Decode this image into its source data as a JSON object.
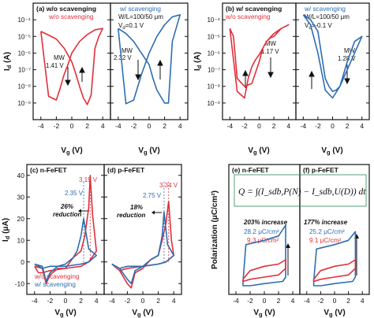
{
  "colors": {
    "red": "#e0303a",
    "blue": "#2e6db4",
    "black": "#111111",
    "green_border": "#2e8b57"
  },
  "panel_labels": {
    "a": "(a) w/o scavenging",
    "b": "(b) w/ scavenging",
    "c": "(c) n-FeFET",
    "d": "(d) p-FeFET",
    "e": "(e) n-FeFET",
    "f": "(f) p-FeFET"
  },
  "annotations": {
    "a_red": "w/o scavenging",
    "a_blue": "w/ scavenging",
    "a_wl": "W/L=100/50 μm",
    "a_vd": "V",
    "a_vd_sub": "d",
    "a_vd_val": "=0.1 V",
    "a_mw_label": "MW",
    "a_mw_red": "1.41 V",
    "a_mw_blue": "2.32 V",
    "b_red": "w/o scavenging",
    "b_blue": "w/ scavenging",
    "b_wl": "W/L=100/50 μm",
    "b_vd": "V",
    "b_vd_sub": "d",
    "b_vd_val": "=-0.1 V",
    "b_mw_label": "MW",
    "b_mw_red": "1.17 V",
    "b_mw_blue": "1.28 V",
    "c_v_red": "3.19 V",
    "c_v_blue": "2.35 V",
    "c_reduction_pct": "26%",
    "c_reduction_word": "reduction",
    "c_legend_red": "w/o scavenging",
    "c_legend_blue": "w/ scavenging",
    "d_v_red": "3.34 V",
    "d_v_blue": "2.75 V",
    "d_reduction_pct": "18%",
    "d_reduction_word": "reduction",
    "e_equation": "Q = ∫(I_sdb,P(N) − I_sdb,U(D)) dt",
    "e_increase": "203% increase",
    "e_blue": "28.2 μC/cm²",
    "e_red": "9.3 μC/cm²",
    "f_increase": "177% increase",
    "f_blue": "25.2 μC/cm²",
    "f_red": "9.1 μC/cm²"
  },
  "axis_text": {
    "id_log_label": "I",
    "id_log_sub": "d",
    "id_log_unit": " (A)",
    "id_lin_label": "I",
    "id_lin_sub": "d",
    "id_lin_unit": " (μA)",
    "vg_label": "V",
    "vg_sub": "g",
    "vg_unit": " (V)",
    "pol_label": "Polarization (μC/cm²)",
    "log_ticks": [
      "10⁻⁹",
      "10⁻⁸",
      "10⁻⁷",
      "10⁻⁶",
      "10⁻⁵",
      "10⁻⁴"
    ],
    "lin_ticks": [
      "-10",
      "0",
      "10",
      "20",
      "30",
      "40"
    ],
    "vg_ticks": [
      "-4",
      "-2",
      "0",
      "2",
      "4"
    ]
  },
  "chart_data": [
    {
      "type": "line",
      "panel": "a",
      "title": "w/o scavenging",
      "xlabel": "Vg (V)",
      "ylabel": "Id (A)",
      "xlim": [
        -5,
        5
      ],
      "ylim": [
        1e-10,
        0.001
      ],
      "yscale": "log",
      "series": [
        {
          "name": "w/o scavenging",
          "color": "red",
          "x": [
            -4,
            -3,
            -2,
            -1,
            0,
            0.5,
            1,
            1.5,
            2,
            2.5,
            3,
            3.5,
            4,
            3,
            2,
            1,
            0,
            -0.5,
            -1,
            -1.5,
            -2,
            -3,
            -4
          ],
          "y": [
            2e-05,
            1.2e-05,
            7e-06,
            2e-06,
            3e-07,
            6e-08,
            1e-08,
            2e-09,
            8e-10,
            3e-09,
            2e-06,
            1e-05,
            3e-05,
            2.5e-05,
            1.3e-05,
            5e-06,
            1e-06,
            2e-07,
            5e-08,
            8e-09,
            1.5e-09,
            2.5e-09,
            2e-05
          ]
        },
        {
          "name": "w/ scavenging",
          "color": "blue",
          "x": [
            -4,
            -3,
            -2,
            -1,
            0,
            0.5,
            1,
            2,
            2.5,
            3,
            4,
            3,
            2,
            1,
            0,
            -1,
            -2,
            -3,
            -4
          ],
          "y": [
            3e-05,
            1.5e-05,
            5e-06,
            1e-06,
            2e-07,
            3e-08,
            6e-09,
            1e-09,
            1e-09,
            5e-06,
            0.0002,
            0.00015,
            5e-05,
            1e-05,
            1e-06,
            5e-08,
            1.5e-09,
            9e-10,
            3e-05
          ]
        }
      ],
      "memory_window": {
        "w/o scavenging": 1.41,
        "w/ scavenging": 2.32
      }
    },
    {
      "type": "line",
      "panel": "b",
      "title": "w/ scavenging",
      "xlabel": "Vg (V)",
      "ylabel": "Id (A)",
      "xlim": [
        -5,
        5
      ],
      "ylim": [
        1e-10,
        0.001
      ],
      "yscale": "log",
      "series": [
        {
          "name": "w/o scavenging",
          "color": "red",
          "x": [
            -4,
            -3.5,
            -3,
            -2,
            -1,
            0,
            0.5,
            1,
            1.5,
            2,
            3,
            4,
            3,
            2,
            1,
            0,
            -0.5,
            -1,
            -1.5,
            -2,
            -3,
            -4
          ],
          "y": [
            3e-05,
            1e-05,
            3e-08,
            1e-08,
            1.5e-08,
            3e-07,
            2e-06,
            5e-06,
            8e-06,
            1e-05,
            3e-05,
            5e-05,
            3e-05,
            1.5e-05,
            5e-06,
            8e-07,
            4e-07,
            1.5e-07,
            3e-08,
            2e-09,
            5e-09,
            3e-05
          ]
        },
        {
          "name": "w/ scavenging",
          "color": "blue",
          "x": [
            -4,
            -3,
            -2,
            -1,
            -0.5,
            0,
            0.5,
            1,
            2,
            3,
            4,
            3,
            2,
            1,
            0,
            -1,
            -2,
            -3,
            -4
          ],
          "y": [
            0.0002,
            0.0001,
            2e-05,
            3e-08,
            1e-08,
            5e-09,
            6e-09,
            1e-08,
            1e-07,
            1e-06,
            1e-05,
            5e-06,
            3e-07,
            1e-08,
            2e-09,
            6e-09,
            1e-06,
            5e-05,
            0.0002
          ]
        }
      ],
      "memory_window": {
        "w/o scavenging": 1.17,
        "w/ scavenging": 1.28
      }
    },
    {
      "type": "line",
      "panel": "c",
      "title": "n-FeFET",
      "xlabel": "Vg (V)",
      "ylabel": "Id (μA)",
      "xlim": [
        -5,
        5
      ],
      "ylim": [
        -15,
        45
      ],
      "series": [
        {
          "name": "w/o scavenging",
          "color": "red",
          "x": [
            -4,
            -3,
            -2.5,
            -2,
            -1,
            0,
            1,
            2,
            2.5,
            3,
            3.19,
            3.5,
            4,
            3,
            2,
            0,
            -2,
            -3,
            -3.5,
            -4
          ],
          "y": [
            -2,
            -3,
            -10,
            -6,
            -3,
            -3,
            2,
            5,
            12,
            25,
            40,
            22,
            5,
            0,
            -2,
            -3,
            -4,
            -5,
            -5,
            -2
          ]
        },
        {
          "name": "w/ scavenging",
          "color": "blue",
          "x": [
            -4,
            -3,
            -2.5,
            -2,
            -1,
            0,
            1,
            1.5,
            2,
            2.35,
            3,
            4,
            3,
            2,
            0,
            -2,
            -3,
            -4
          ],
          "y": [
            -1,
            -2,
            -9,
            -5,
            -2,
            -1,
            2,
            5,
            12,
            20,
            6,
            3,
            0,
            -1,
            -2,
            -2,
            -3,
            -1
          ]
        }
      ],
      "peak_voltage": {
        "w/o scavenging": 3.19,
        "w/ scavenging": 2.35
      },
      "reduction": "26%"
    },
    {
      "type": "line",
      "panel": "d",
      "title": "p-FeFET",
      "xlabel": "Vg (V)",
      "ylabel": "Id (μA)",
      "xlim": [
        -5,
        5
      ],
      "ylim": [
        -15,
        45
      ],
      "series": [
        {
          "name": "w/o scavenging",
          "color": "red",
          "x": [
            -4,
            -3,
            -2,
            -1.5,
            -1,
            0,
            1,
            2,
            2.5,
            3,
            3.34,
            3.7,
            4,
            3,
            2,
            0,
            -2,
            -3,
            -4
          ],
          "y": [
            -1,
            -4,
            -10,
            -12,
            -5,
            -3,
            1,
            3,
            10,
            18,
            28,
            10,
            3,
            0,
            -1,
            -2,
            -3,
            -4,
            -1
          ]
        },
        {
          "name": "w/ scavenging",
          "color": "blue",
          "x": [
            -4,
            -3,
            -2,
            -1.5,
            -1,
            0,
            1,
            2,
            2.5,
            2.75,
            3.2,
            4,
            3,
            2,
            0,
            -2,
            -3,
            -4
          ],
          "y": [
            -1,
            -3,
            -8,
            -10,
            -4,
            -2,
            1,
            3,
            12,
            23,
            8,
            3,
            0,
            -1,
            -2,
            -2,
            -3,
            -1
          ]
        }
      ],
      "peak_voltage": {
        "w/o scavenging": 3.34,
        "w/ scavenging": 2.75
      },
      "reduction": "18%"
    },
    {
      "type": "line",
      "panel": "e",
      "title": "n-FeFET",
      "xlabel": "Vg (V)",
      "ylabel": "Polarization (μC/cm²)",
      "xlim": [
        -5,
        5
      ],
      "ylim": [
        -20,
        40
      ],
      "series": [
        {
          "name": "w/ scavenging",
          "color": "blue",
          "x": [
            -3,
            -2.6,
            0,
            2,
            3,
            3,
            2.6,
            0,
            -2,
            -3,
            -3
          ],
          "y": [
            -14,
            3,
            5,
            7,
            12,
            -12,
            -14,
            -15,
            -16,
            -16,
            -14
          ]
        },
        {
          "name": "w/o scavenging",
          "color": "red",
          "x": [
            -3,
            -2,
            0,
            2,
            3,
            3,
            2,
            0,
            -2,
            -3,
            -3
          ],
          "y": [
            -13,
            -9,
            -7,
            -6,
            -4,
            -8,
            -11,
            -12,
            -13,
            -14,
            -13
          ]
        }
      ],
      "polarization": {
        "w/ scavenging": 28.2,
        "w/o scavenging": 9.3
      },
      "increase": "203%"
    },
    {
      "type": "line",
      "panel": "f",
      "title": "p-FeFET",
      "xlabel": "Vg (V)",
      "ylabel": "",
      "xlim": [
        -5,
        5
      ],
      "ylim": [
        -20,
        40
      ],
      "series": [
        {
          "name": "w/ scavenging",
          "color": "blue",
          "x": [
            -3,
            -2.6,
            0,
            2,
            3,
            3,
            2.6,
            0,
            -2,
            -3,
            -3
          ],
          "y": [
            -14,
            1,
            3,
            5,
            9,
            -12,
            -14,
            -15,
            -16,
            -16,
            -14
          ]
        },
        {
          "name": "w/o scavenging",
          "color": "red",
          "x": [
            -3,
            -2,
            0,
            2,
            3,
            3,
            2,
            0,
            -2,
            -3,
            -3
          ],
          "y": [
            -13,
            -9,
            -7,
            -6,
            -4,
            -8,
            -11,
            -12,
            -13,
            -14,
            -13
          ]
        }
      ],
      "polarization": {
        "w/ scavenging": 25.2,
        "w/o scavenging": 9.1
      },
      "increase": "177%"
    }
  ]
}
